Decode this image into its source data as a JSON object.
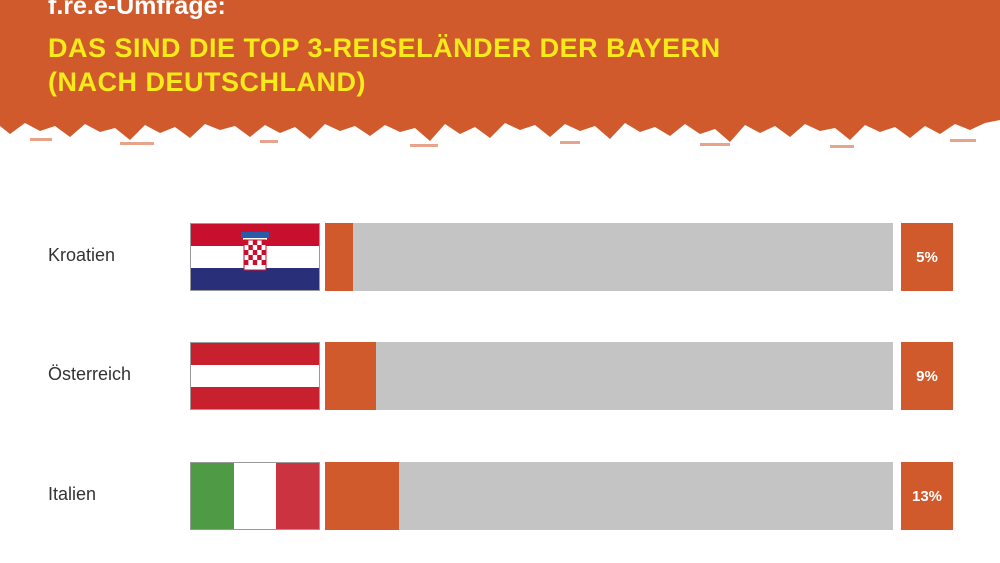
{
  "header": {
    "kicker": "f.re.e-Umfrage:",
    "title_line1": "DAS SIND DIE TOP 3-REISELÄNDER DER BAYERN",
    "title_line2": "(NACH DEUTSCHLAND)"
  },
  "colors": {
    "header_bg": "#d05a2b",
    "title": "#f6ea1a",
    "bar_fill": "#d05a2b",
    "bar_track": "#c4c4c4"
  },
  "chart_data": {
    "type": "bar",
    "orientation": "horizontal",
    "categories": [
      "Kroatien",
      "Österreich",
      "Italien"
    ],
    "values": [
      5,
      9,
      13
    ],
    "value_labels": [
      "5%",
      "9%",
      "13%"
    ],
    "unit": "%",
    "xlim": [
      0,
      100
    ],
    "flags": [
      "croatia-flag",
      "austria-flag",
      "italy-flag"
    ],
    "title": "DAS SIND DIE TOP 3-REISELÄNDER DER BAYERN (NACH DEUTSCHLAND)",
    "grid": false,
    "legend": "none"
  }
}
